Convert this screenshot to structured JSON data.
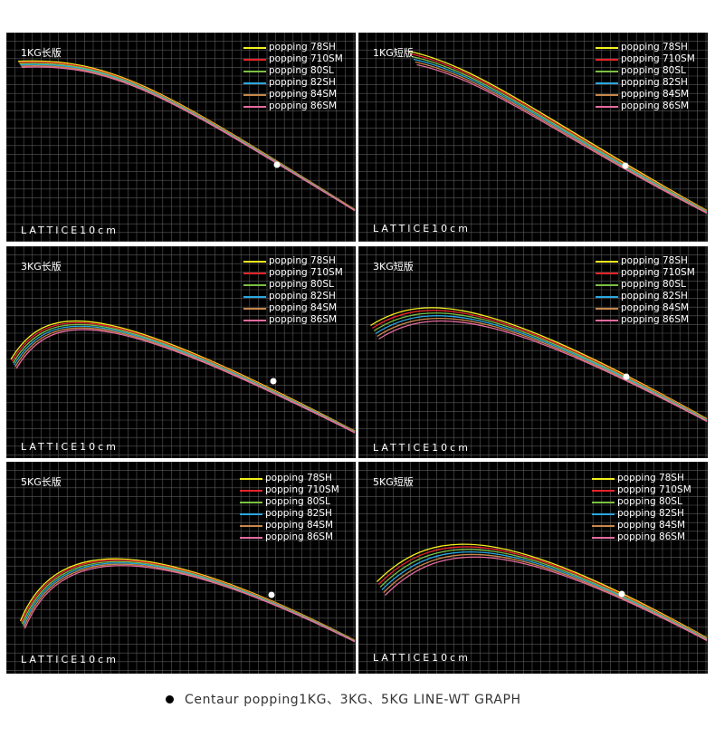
{
  "caption": "Centaur popping1KG、3KG、5KG LINE-WT GRAPH",
  "lattice_label": "LATTICE10cm",
  "colors": {
    "background": "#000000",
    "grid": "#5a5a5a",
    "marker": "#ffffff"
  },
  "series_colors": [
    "#f5f01e",
    "#e8242a",
    "#7ac143",
    "#2aa7e0",
    "#c8874a",
    "#e56b9f"
  ],
  "chart_data": [
    {
      "type": "line",
      "title": "1KG长版",
      "series": [
        {
          "name": "popping 78SH"
        },
        {
          "name": "popping 710SM"
        },
        {
          "name": "popping 80SL"
        },
        {
          "name": "popping 82SH"
        },
        {
          "name": "popping 84SM"
        },
        {
          "name": "popping 86SM"
        }
      ],
      "grid": true,
      "legend": "top-right"
    },
    {
      "type": "line",
      "title": "1KG短版",
      "series": [
        {
          "name": "popping 78SH"
        },
        {
          "name": "popping 710SM"
        },
        {
          "name": "popping 80SL"
        },
        {
          "name": "popping 82SH"
        },
        {
          "name": "popping 84SM"
        },
        {
          "name": "popping 86SM"
        }
      ],
      "grid": true,
      "legend": "top-right"
    },
    {
      "type": "line",
      "title": "3KG长版",
      "series": [
        {
          "name": "popping 78SH"
        },
        {
          "name": "popping 710SM"
        },
        {
          "name": "popping 80SL"
        },
        {
          "name": "popping 82SH"
        },
        {
          "name": "popping 84SM"
        },
        {
          "name": "popping 86SM"
        }
      ],
      "grid": true,
      "legend": "top-right"
    },
    {
      "type": "line",
      "title": "3KG短版",
      "series": [
        {
          "name": "popping 78SH"
        },
        {
          "name": "popping 710SM"
        },
        {
          "name": "popping 80SL"
        },
        {
          "name": "popping 82SH"
        },
        {
          "name": "popping 84SM"
        },
        {
          "name": "popping 86SM"
        }
      ],
      "grid": true,
      "legend": "top-right"
    },
    {
      "type": "line",
      "title": "5KG长版",
      "series": [
        {
          "name": "popping 78SH"
        },
        {
          "name": "popping 710SM"
        },
        {
          "name": "popping 80SL"
        },
        {
          "name": "popping 82SH"
        },
        {
          "name": "popping 84SM"
        },
        {
          "name": "popping 86SM"
        }
      ],
      "grid": true,
      "legend": "top-right"
    },
    {
      "type": "line",
      "title": "5KG短版",
      "series": [
        {
          "name": "popping 78SH"
        },
        {
          "name": "popping 710SM"
        },
        {
          "name": "popping 80SL"
        },
        {
          "name": "popping 82SH"
        },
        {
          "name": "popping 84SM"
        },
        {
          "name": "popping 86SM"
        }
      ],
      "grid": true,
      "legend": "top-right"
    }
  ]
}
